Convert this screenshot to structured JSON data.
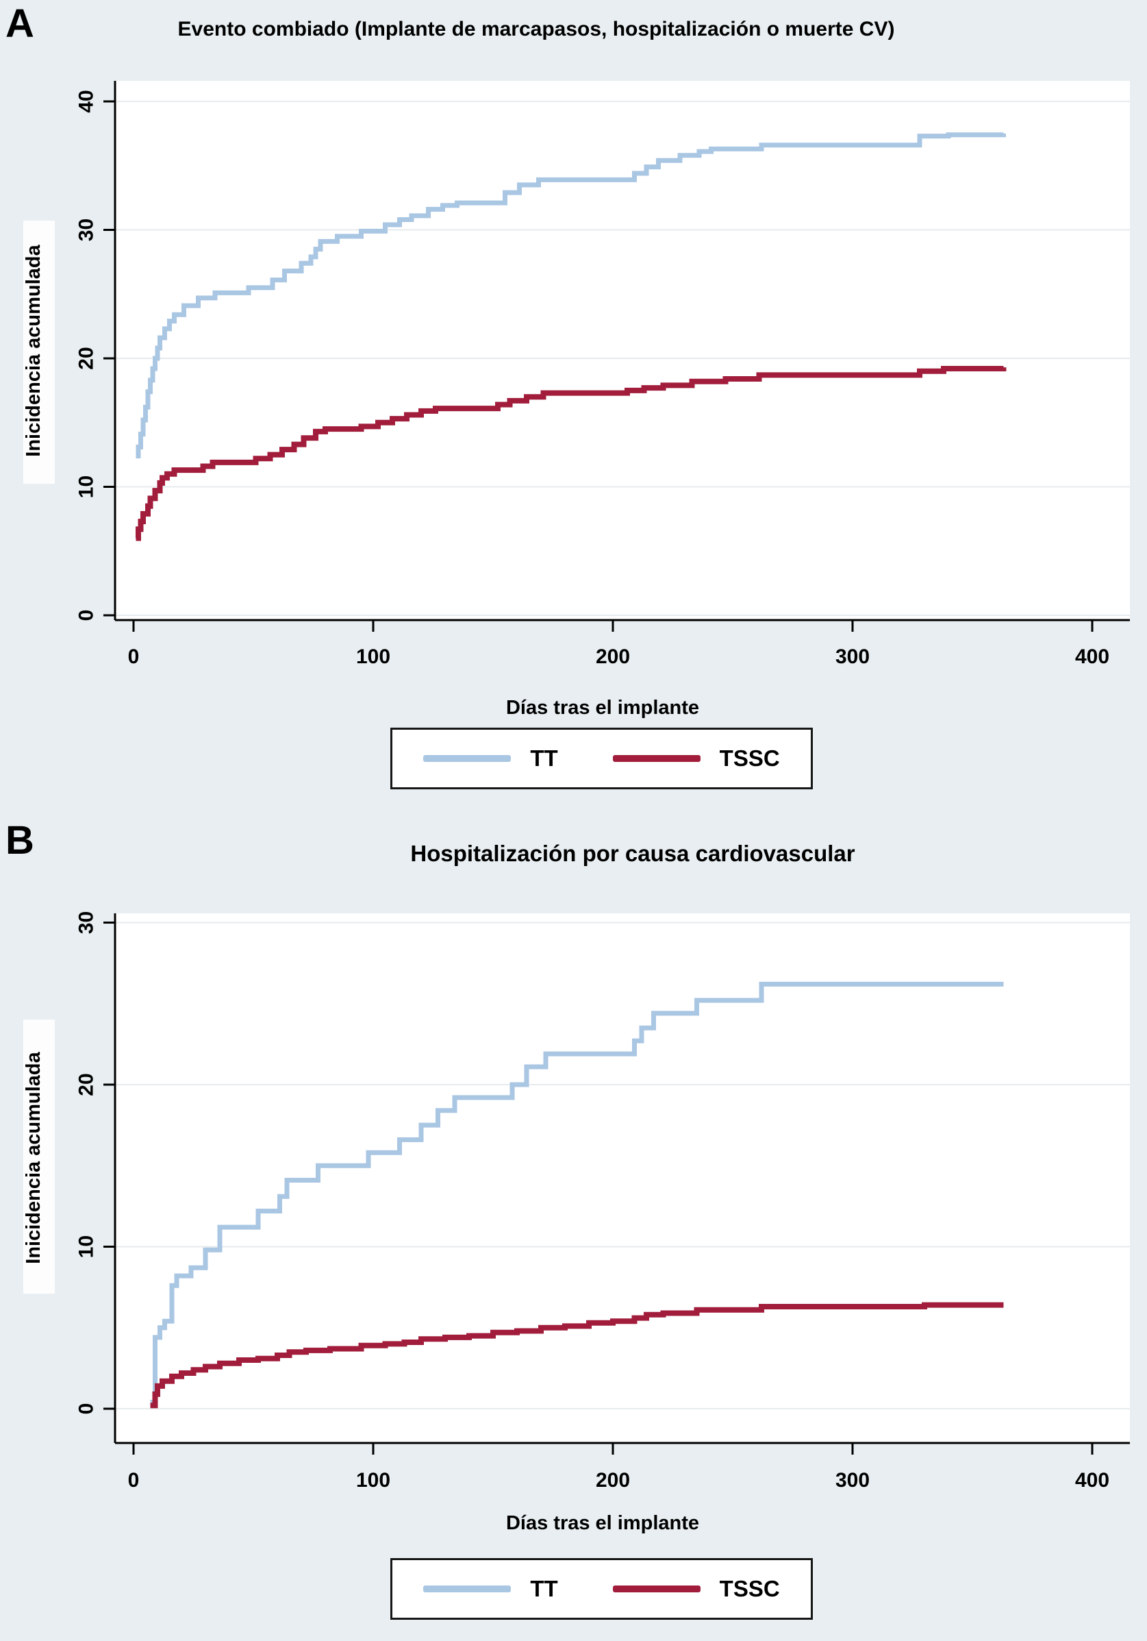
{
  "figure": {
    "background_color": "#e8eef1",
    "panels": [
      {
        "letter": "A"
      },
      {
        "letter": "B"
      }
    ]
  },
  "chart_data": [
    {
      "type": "line",
      "subtype": "step-cumulative-incidence",
      "title": "Evento combiado (Implante de marcapasos, hospitalización o muerte CV)",
      "xlabel": "Días tras el implante",
      "ylabel": "Inicidencia acumulada",
      "xlim": [
        0,
        400
      ],
      "ylim": [
        0,
        40
      ],
      "xticks": [
        0,
        100,
        200,
        300,
        400
      ],
      "yticks": [
        0,
        10,
        20,
        30,
        40
      ],
      "grid": true,
      "legend_position": "bottom",
      "legend": [
        "TT",
        "TSSC"
      ],
      "series": [
        {
          "name": "TT",
          "color": "#a9c6e3",
          "points": [
            [
              1,
              12.4
            ],
            [
              2,
              13.1
            ],
            [
              3,
              14.1
            ],
            [
              4,
              15.2
            ],
            [
              5,
              16.2
            ],
            [
              6,
              17.4
            ],
            [
              7,
              18.3
            ],
            [
              8,
              19.2
            ],
            [
              9,
              20.0
            ],
            [
              10,
              20.8
            ],
            [
              11,
              21.6
            ],
            [
              13,
              22.3
            ],
            [
              15,
              22.9
            ],
            [
              17,
              23.4
            ],
            [
              21,
              24.1
            ],
            [
              27,
              24.7
            ],
            [
              34,
              25.1
            ],
            [
              48,
              25.5
            ],
            [
              58,
              26.1
            ],
            [
              63,
              26.8
            ],
            [
              70,
              27.4
            ],
            [
              74,
              27.9
            ],
            [
              76,
              28.5
            ],
            [
              78,
              29.1
            ],
            [
              85,
              29.5
            ],
            [
              95,
              29.9
            ],
            [
              105,
              30.4
            ],
            [
              111,
              30.8
            ],
            [
              116,
              31.1
            ],
            [
              123,
              31.6
            ],
            [
              129,
              31.9
            ],
            [
              135,
              32.1
            ],
            [
              155,
              32.9
            ],
            [
              161,
              33.5
            ],
            [
              169,
              33.9
            ],
            [
              209,
              34.4
            ],
            [
              214,
              34.9
            ],
            [
              219,
              35.4
            ],
            [
              228,
              35.8
            ],
            [
              236,
              36.1
            ],
            [
              241,
              36.3
            ],
            [
              262,
              36.6
            ],
            [
              328,
              37.3
            ],
            [
              340,
              37.4
            ],
            [
              363,
              37.5
            ]
          ]
        },
        {
          "name": "TSSC",
          "color": "#a11d3b",
          "points": [
            [
              1,
              6.0
            ],
            [
              2,
              6.7
            ],
            [
              3,
              7.3
            ],
            [
              4,
              7.9
            ],
            [
              6,
              8.5
            ],
            [
              7,
              9.1
            ],
            [
              9,
              9.7
            ],
            [
              11,
              10.3
            ],
            [
              12,
              10.7
            ],
            [
              14,
              11.0
            ],
            [
              17,
              11.3
            ],
            [
              29,
              11.6
            ],
            [
              33,
              11.9
            ],
            [
              51,
              12.2
            ],
            [
              57,
              12.5
            ],
            [
              62,
              12.9
            ],
            [
              67,
              13.3
            ],
            [
              71,
              13.8
            ],
            [
              76,
              14.3
            ],
            [
              80,
              14.5
            ],
            [
              95,
              14.7
            ],
            [
              102,
              15.0
            ],
            [
              108,
              15.3
            ],
            [
              114,
              15.6
            ],
            [
              120,
              15.9
            ],
            [
              126,
              16.1
            ],
            [
              152,
              16.4
            ],
            [
              157,
              16.7
            ],
            [
              164,
              17.0
            ],
            [
              171,
              17.3
            ],
            [
              206,
              17.5
            ],
            [
              213,
              17.7
            ],
            [
              221,
              17.9
            ],
            [
              233,
              18.2
            ],
            [
              247,
              18.4
            ],
            [
              261,
              18.7
            ],
            [
              328,
              19.0
            ],
            [
              338,
              19.2
            ],
            [
              363,
              19.3
            ]
          ]
        }
      ]
    },
    {
      "type": "line",
      "subtype": "step-cumulative-incidence",
      "title": "Hospitalización por causa cardiovascular",
      "xlabel": "Días tras el implante",
      "ylabel": "Inicidencia acumulada",
      "xlim": [
        0,
        400
      ],
      "ylim": [
        0,
        30
      ],
      "xticks": [
        0,
        100,
        200,
        300,
        400
      ],
      "yticks": [
        0,
        10,
        20,
        30
      ],
      "grid": true,
      "legend_position": "bottom",
      "legend": [
        "TT",
        "TSSC"
      ],
      "series": [
        {
          "name": "TT",
          "color": "#a9c6e3",
          "points": [
            [
              7,
              0.4
            ],
            [
              9,
              4.4
            ],
            [
              11,
              5.0
            ],
            [
              13,
              5.4
            ],
            [
              16,
              7.6
            ],
            [
              18,
              8.2
            ],
            [
              24,
              8.7
            ],
            [
              30,
              9.8
            ],
            [
              36,
              11.2
            ],
            [
              52,
              12.2
            ],
            [
              61,
              13.1
            ],
            [
              64,
              14.1
            ],
            [
              77,
              15.0
            ],
            [
              98,
              15.8
            ],
            [
              111,
              16.6
            ],
            [
              120,
              17.5
            ],
            [
              127,
              18.4
            ],
            [
              134,
              19.2
            ],
            [
              158,
              20.0
            ],
            [
              164,
              21.1
            ],
            [
              172,
              21.9
            ],
            [
              209,
              22.7
            ],
            [
              212,
              23.5
            ],
            [
              217,
              24.4
            ],
            [
              235,
              25.2
            ],
            [
              262,
              26.2
            ],
            [
              363,
              26.2
            ]
          ]
        },
        {
          "name": "TSSC",
          "color": "#a11d3b",
          "points": [
            [
              7,
              0.2
            ],
            [
              9,
              0.9
            ],
            [
              10,
              1.4
            ],
            [
              12,
              1.7
            ],
            [
              16,
              2.0
            ],
            [
              20,
              2.2
            ],
            [
              25,
              2.4
            ],
            [
              30,
              2.6
            ],
            [
              36,
              2.8
            ],
            [
              44,
              3.0
            ],
            [
              52,
              3.1
            ],
            [
              60,
              3.3
            ],
            [
              65,
              3.5
            ],
            [
              72,
              3.6
            ],
            [
              82,
              3.7
            ],
            [
              95,
              3.9
            ],
            [
              105,
              4.0
            ],
            [
              113,
              4.1
            ],
            [
              120,
              4.3
            ],
            [
              130,
              4.4
            ],
            [
              140,
              4.5
            ],
            [
              150,
              4.7
            ],
            [
              160,
              4.8
            ],
            [
              170,
              5.0
            ],
            [
              180,
              5.1
            ],
            [
              190,
              5.3
            ],
            [
              200,
              5.4
            ],
            [
              209,
              5.6
            ],
            [
              214,
              5.8
            ],
            [
              221,
              5.9
            ],
            [
              235,
              6.1
            ],
            [
              262,
              6.3
            ],
            [
              330,
              6.4
            ],
            [
              363,
              6.4
            ]
          ]
        }
      ]
    }
  ]
}
